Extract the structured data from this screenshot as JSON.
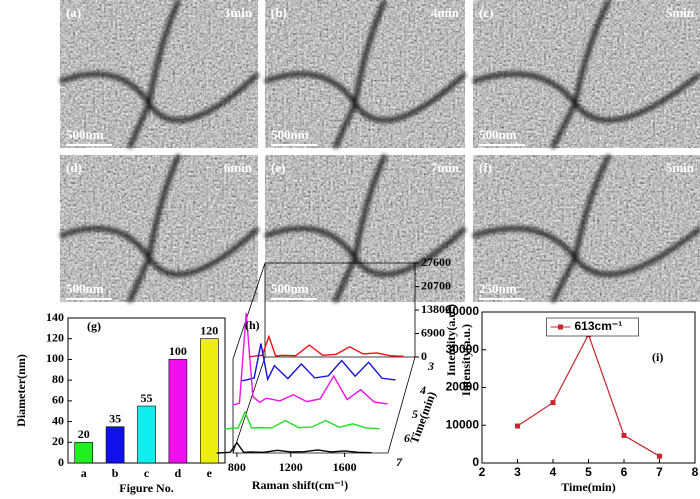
{
  "panels": [
    {
      "label": "(a)",
      "time": "3min",
      "scale": "500nm"
    },
    {
      "label": "(b)",
      "time": "4min",
      "scale": "500nm"
    },
    {
      "label": "(c)",
      "time": "5min",
      "scale": "500nm"
    },
    {
      "label": "(d)",
      "time": "6min",
      "scale": "500nm"
    },
    {
      "label": "(e)",
      "time": "7min",
      "scale": "500nm"
    },
    {
      "label": "(f)",
      "time": "5min",
      "scale": "250nm"
    }
  ],
  "chart_data": [
    {
      "type": "bar",
      "panel": "(g)",
      "xlabel": "Figure No.",
      "ylabel": "Diameter(nm)",
      "categories": [
        "a",
        "b",
        "c",
        "d",
        "e"
      ],
      "values": [
        20,
        35,
        55,
        100,
        120
      ],
      "colors": [
        "#22ee22",
        "#1111ee",
        "#11eeee",
        "#ee11ee",
        "#eeee11"
      ],
      "ylim": [
        0,
        140
      ],
      "yticks": [
        0,
        20,
        40,
        60,
        80,
        100,
        120,
        140
      ]
    },
    {
      "type": "waterfall",
      "panel": "(h)",
      "xlabel": "Raman shift(cm⁻¹)",
      "ylabel": "Intensity(a.u.)",
      "zlabel": "Time(min)",
      "x": [
        650,
        700,
        750,
        800,
        850,
        900,
        1000,
        1100,
        1200,
        1300,
        1400,
        1500,
        1600,
        1700,
        1800
      ],
      "xlim": [
        600,
        1900
      ],
      "xticks": [
        800,
        1200,
        1600
      ],
      "ylim": [
        0,
        27600
      ],
      "yticks": [
        0,
        6900,
        13800,
        20700,
        27600
      ],
      "zticks": [
        3,
        4,
        5,
        6,
        7
      ],
      "series": [
        {
          "color": "#ee1111",
          "values": [
            0,
            300,
            500,
            6000,
            300,
            500,
            400,
            3500,
            500,
            800,
            3000,
            900,
            1200,
            400,
            200
          ]
        },
        {
          "color": "#1111dd",
          "values": [
            0,
            400,
            900,
            11000,
            500,
            4500,
            700,
            5000,
            900,
            1500,
            6000,
            1400,
            5500,
            800,
            300
          ]
        },
        {
          "color": "#ee11ee",
          "values": [
            0,
            500,
            27000,
            2500,
            800,
            2000,
            1200,
            3000,
            1000,
            1800,
            8500,
            1600,
            4500,
            900,
            300
          ]
        },
        {
          "color": "#22dd22",
          "values": [
            0,
            200,
            300,
            5000,
            300,
            400,
            300,
            2500,
            400,
            600,
            2500,
            500,
            1500,
            300,
            100
          ]
        },
        {
          "color": "#000000",
          "values": [
            0,
            100,
            200,
            3000,
            200,
            300,
            200,
            800,
            300,
            400,
            900,
            300,
            600,
            200,
            100
          ]
        }
      ]
    },
    {
      "type": "line",
      "panel": "(i)",
      "xlabel": "Time(min)",
      "ylabel": "Intensity(a.u.)",
      "x": [
        3,
        4,
        5,
        6,
        7
      ],
      "series": [
        {
          "name": "613cm⁻¹",
          "color": "#c8262e",
          "values": [
            9800,
            16000,
            34000,
            7300,
            1800
          ]
        }
      ],
      "xlim": [
        2,
        8
      ],
      "xticks": [
        2,
        3,
        4,
        5,
        6,
        7,
        8
      ],
      "ylim": [
        0,
        40000
      ],
      "yticks": [
        0,
        10000,
        20000,
        30000,
        40000
      ],
      "legend": "top-center"
    }
  ]
}
